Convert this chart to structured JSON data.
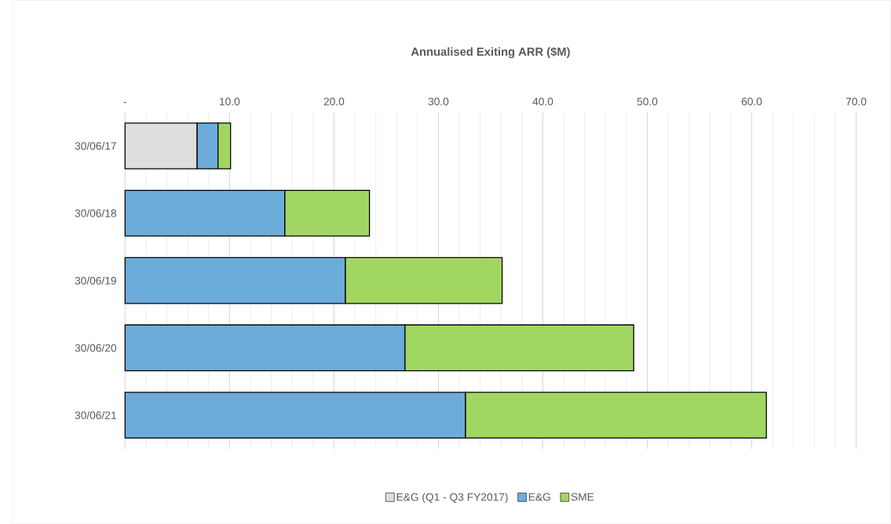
{
  "chart_data": {
    "type": "bar",
    "orientation": "horizontal",
    "stacked": true,
    "title": "Annualised Exiting ARR ($M)",
    "categories": [
      "30/06/17",
      "30/06/18",
      "30/06/19",
      "30/06/20",
      "30/06/21"
    ],
    "series": [
      {
        "name": "E&G (Q1 - Q3 FY2017)",
        "color": "#dedede",
        "values": [
          6.9,
          null,
          null,
          null,
          null
        ]
      },
      {
        "name": "E&G",
        "color": "#6cacdb",
        "values": [
          2.0,
          15.3,
          21.1,
          26.8,
          32.6
        ]
      },
      {
        "name": "SME",
        "color": "#a2d662",
        "values": [
          1.2,
          8.1,
          15.0,
          21.9,
          28.8
        ]
      }
    ],
    "xlim": [
      0,
      70
    ],
    "xticks": [
      {
        "value": 0,
        "label": "-"
      },
      {
        "value": 2,
        "label": null
      },
      {
        "value": 4,
        "label": null
      },
      {
        "value": 6,
        "label": null
      },
      {
        "value": 8,
        "label": null
      },
      {
        "value": 10,
        "label": "10.0"
      },
      {
        "value": 12,
        "label": null
      },
      {
        "value": 14,
        "label": null
      },
      {
        "value": 16,
        "label": null
      },
      {
        "value": 18,
        "label": null
      },
      {
        "value": 20,
        "label": "20.0"
      },
      {
        "value": 22,
        "label": null
      },
      {
        "value": 24,
        "label": null
      },
      {
        "value": 26,
        "label": null
      },
      {
        "value": 28,
        "label": null
      },
      {
        "value": 30,
        "label": "30.0"
      },
      {
        "value": 32,
        "label": null
      },
      {
        "value": 34,
        "label": null
      },
      {
        "value": 36,
        "label": null
      },
      {
        "value": 38,
        "label": null
      },
      {
        "value": 40,
        "label": "40.0"
      },
      {
        "value": 42,
        "label": null
      },
      {
        "value": 44,
        "label": null
      },
      {
        "value": 46,
        "label": null
      },
      {
        "value": 48,
        "label": null
      },
      {
        "value": 50,
        "label": "50.0"
      },
      {
        "value": 52,
        "label": null
      },
      {
        "value": 54,
        "label": null
      },
      {
        "value": 56,
        "label": null
      },
      {
        "value": 58,
        "label": null
      },
      {
        "value": 60,
        "label": "60.0"
      },
      {
        "value": 62,
        "label": null
      },
      {
        "value": 64,
        "label": null
      },
      {
        "value": 66,
        "label": null
      },
      {
        "value": 68,
        "label": null
      },
      {
        "value": 70,
        "label": "70.0"
      }
    ],
    "grid": "x",
    "legend": "bottom"
  }
}
